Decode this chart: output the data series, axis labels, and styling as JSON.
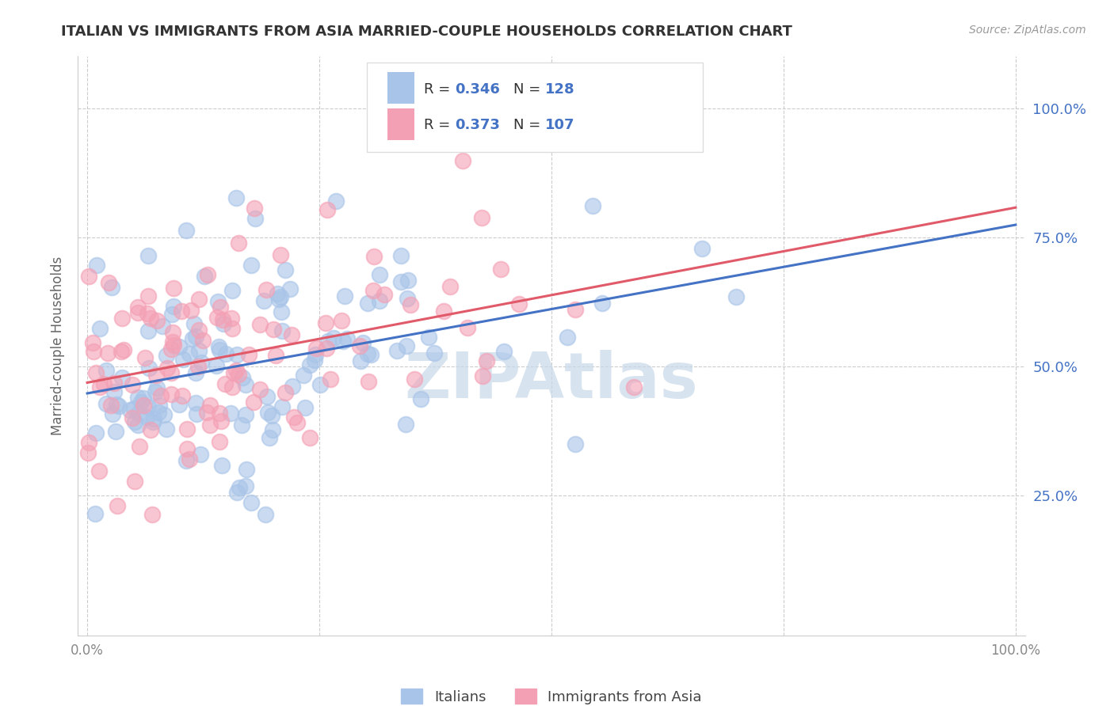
{
  "title": "ITALIAN VS IMMIGRANTS FROM ASIA MARRIED-COUPLE HOUSEHOLDS CORRELATION CHART",
  "source": "Source: ZipAtlas.com",
  "ylabel": "Married-couple Households",
  "ytick_labels": [
    "25.0%",
    "50.0%",
    "75.0%",
    "100.0%"
  ],
  "ytick_values": [
    0.25,
    0.5,
    0.75,
    1.0
  ],
  "legend_label1": "Italians",
  "legend_label2": "Immigrants from Asia",
  "R1": 0.346,
  "N1": 128,
  "R2": 0.373,
  "N2": 107,
  "color_blue": "#a8c4e8",
  "color_pink": "#f4a0b4",
  "line_color_blue": "#4472c4",
  "line_color_pink": "#e05a6a",
  "text_color_blue": "#4472c4",
  "watermark_color": "#c8d8ea",
  "background_color": "#ffffff",
  "title_color": "#333333",
  "source_color": "#999999",
  "ylabel_color": "#666666",
  "tick_color": "#888888",
  "grid_color": "#cccccc",
  "legend_box_color": "#dddddd"
}
